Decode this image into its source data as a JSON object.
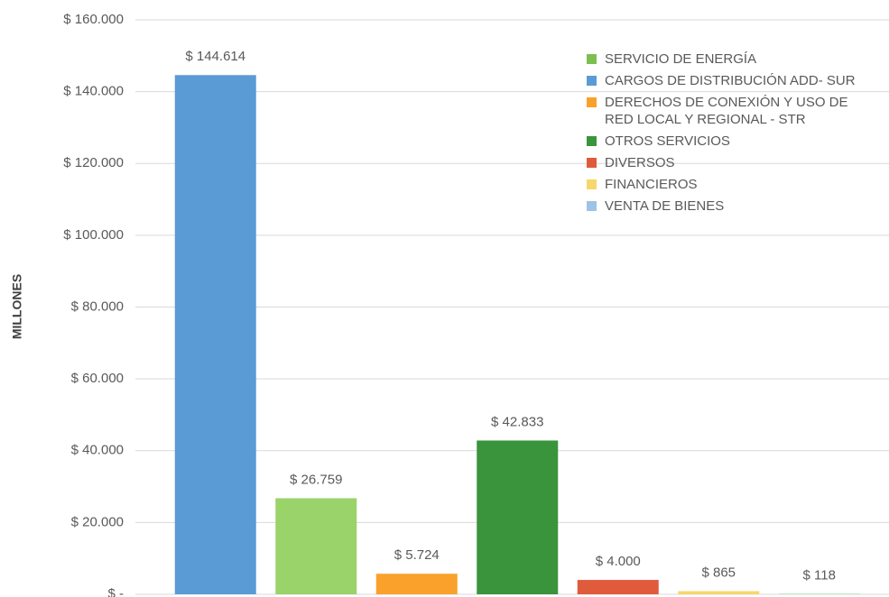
{
  "chart_data": {
    "type": "bar",
    "y_label": "MILLONES",
    "categories": [
      null,
      null,
      null,
      null,
      null,
      null,
      null
    ],
    "values": [
      144614,
      26759,
      5724,
      42833,
      4000,
      865,
      118
    ],
    "value_labels": [
      "$ 144.614",
      "$ 26.759",
      "$ 5.724",
      "$ 42.833",
      "$ 4.000",
      "$ 865",
      "$ 118"
    ],
    "colors": [
      "#5b9bd5",
      "#9ad36a",
      "#f9a12a",
      "#3a943c",
      "#e05a3c",
      "#f5d76b",
      "#8fc98a"
    ],
    "ylim": [
      0,
      160000
    ],
    "yticks": [
      {
        "value": 0,
        "label": "$ -"
      },
      {
        "value": 20000,
        "label": "$ 20.000"
      },
      {
        "value": 40000,
        "label": "$ 40.000"
      },
      {
        "value": 60000,
        "label": "$ 60.000"
      },
      {
        "value": 80000,
        "label": "$ 80.000"
      },
      {
        "value": 100000,
        "label": "$ 100.000"
      },
      {
        "value": 120000,
        "label": "$ 120.000"
      },
      {
        "value": 140000,
        "label": "$ 140.000"
      },
      {
        "value": 160000,
        "label": "$ 160.000"
      }
    ],
    "grid": true,
    "legend": [
      {
        "name": "SERVICIO DE ENERGÍA",
        "color": "#7cbf4f"
      },
      {
        "name": "CARGOS DE DISTRIBUCIÓN ADD- SUR",
        "color": "#5b9bd5"
      },
      {
        "name": "DERECHOS DE CONEXIÓN Y USO DE RED LOCAL Y REGIONAL - STR",
        "color": "#f9a12a"
      },
      {
        "name": "OTROS SERVICIOS",
        "color": "#3a943c"
      },
      {
        "name": "DIVERSOS",
        "color": "#e05a3c"
      },
      {
        "name": "FINANCIEROS",
        "color": "#f5d76b"
      },
      {
        "name": "VENTA DE BIENES",
        "color": "#9dc3e6"
      }
    ]
  }
}
